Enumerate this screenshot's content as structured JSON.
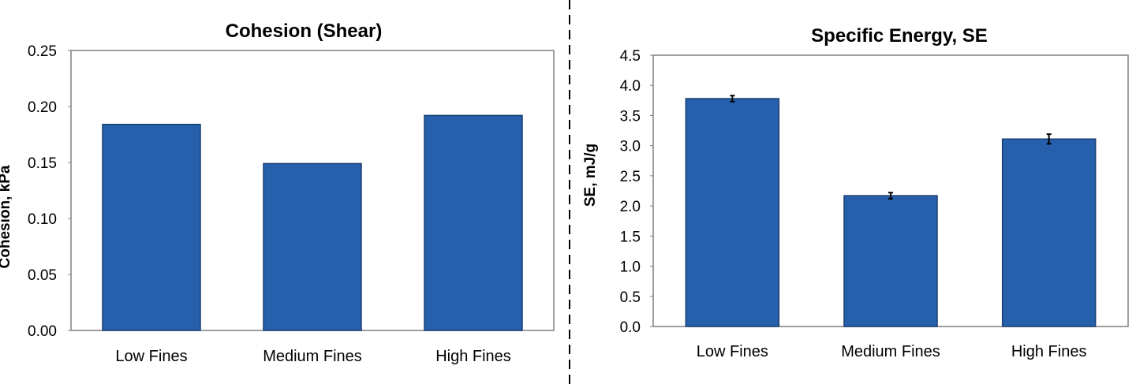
{
  "colors": {
    "bar": "#2660AC",
    "bar_edge": "#1A3F73",
    "axis": "#7f7f7f",
    "divider": "#000000"
  },
  "chart_data": [
    {
      "type": "bar",
      "title": "Cohesion (Shear)",
      "xlabel": "",
      "ylabel": "Cohesion, kPa",
      "categories": [
        "Low Fines",
        "Medium Fines",
        "High Fines"
      ],
      "values": [
        0.184,
        0.149,
        0.192
      ],
      "ylim": [
        0,
        0.25
      ],
      "yticks": [
        "0.00",
        "0.05",
        "0.10",
        "0.15",
        "0.20",
        "0.25"
      ],
      "grid": false
    },
    {
      "type": "bar",
      "title": "Specific Energy, SE",
      "xlabel": "",
      "ylabel": "SE, mJ/g",
      "categories": [
        "Low Fines",
        "Medium Fines",
        "High Fines"
      ],
      "values": [
        3.78,
        2.17,
        3.11
      ],
      "error": [
        0.05,
        0.05,
        0.08
      ],
      "ylim": [
        0,
        4.5
      ],
      "yticks": [
        "0.0",
        "0.5",
        "1.0",
        "1.5",
        "2.0",
        "2.5",
        "3.0",
        "3.5",
        "4.0",
        "4.5"
      ],
      "grid": false
    }
  ]
}
